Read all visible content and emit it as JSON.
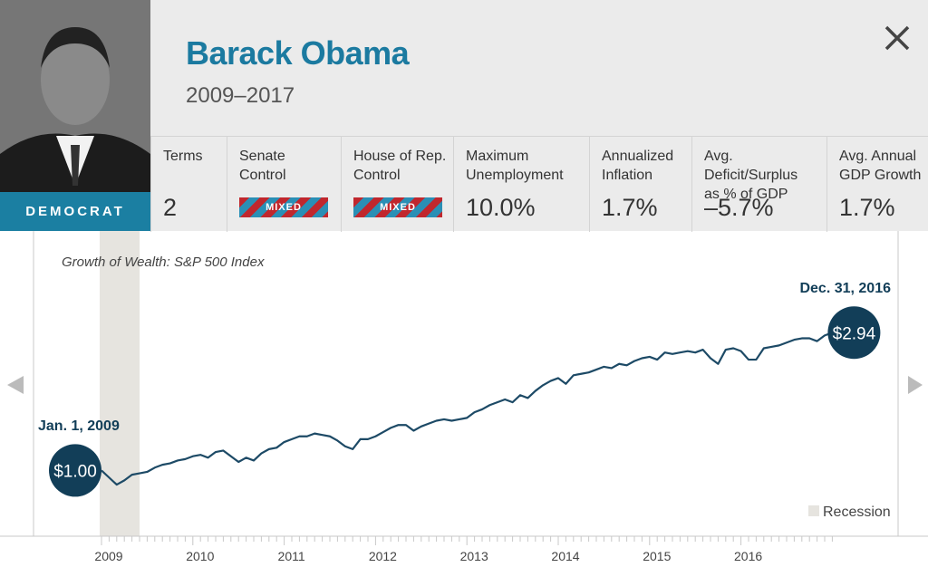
{
  "profile": {
    "name": "Barack Obama",
    "term": "2009–2017",
    "party": "DEMOCRAT"
  },
  "stats": [
    {
      "label": "Terms",
      "value": "2"
    },
    {
      "label": "Senate\nControl",
      "badge": "MIXED"
    },
    {
      "label": "House of Rep.\nControl",
      "badge": "MIXED"
    },
    {
      "label": "Maximum\nUnemployment",
      "value": "10.0%"
    },
    {
      "label": "Annualized\nInflation",
      "value": "1.7%"
    },
    {
      "label": "Avg. Deficit/Surplus\nas % of GDP",
      "value": "–5.7%"
    },
    {
      "label": "Avg. Annual\nGDP Growth",
      "value": "1.7%"
    }
  ],
  "chart_data": {
    "type": "line",
    "title": "Growth of Wealth: S&P 500 Index",
    "categories": [
      "2009",
      null,
      null,
      null,
      null,
      null,
      null,
      null,
      null,
      null,
      null,
      null,
      "2010",
      null,
      null,
      null,
      null,
      null,
      null,
      null,
      null,
      null,
      null,
      null,
      "2011",
      null,
      null,
      null,
      null,
      null,
      null,
      null,
      null,
      null,
      null,
      null,
      "2012",
      null,
      null,
      null,
      null,
      null,
      null,
      null,
      null,
      null,
      null,
      null,
      "2013",
      null,
      null,
      null,
      null,
      null,
      null,
      null,
      null,
      null,
      null,
      null,
      "2014",
      null,
      null,
      null,
      null,
      null,
      null,
      null,
      null,
      null,
      null,
      null,
      "2015",
      null,
      null,
      null,
      null,
      null,
      null,
      null,
      null,
      null,
      null,
      null,
      "2016",
      null,
      null,
      null,
      null,
      null,
      null,
      null,
      null,
      null,
      null,
      null,
      null
    ],
    "series": [
      {
        "name": "S&P 500 Index",
        "color": "#1d4a66",
        "values": [
          1.0,
          0.9,
          0.8,
          0.86,
          0.94,
          0.96,
          0.98,
          1.04,
          1.08,
          1.1,
          1.14,
          1.16,
          1.2,
          1.22,
          1.18,
          1.26,
          1.28,
          1.2,
          1.12,
          1.18,
          1.14,
          1.24,
          1.3,
          1.32,
          1.4,
          1.44,
          1.48,
          1.48,
          1.52,
          1.5,
          1.48,
          1.42,
          1.34,
          1.3,
          1.44,
          1.44,
          1.48,
          1.54,
          1.6,
          1.64,
          1.64,
          1.56,
          1.62,
          1.66,
          1.7,
          1.72,
          1.7,
          1.72,
          1.74,
          1.82,
          1.86,
          1.92,
          1.96,
          2.0,
          1.96,
          2.06,
          2.02,
          2.12,
          2.2,
          2.26,
          2.3,
          2.22,
          2.34,
          2.36,
          2.38,
          2.42,
          2.46,
          2.44,
          2.5,
          2.48,
          2.54,
          2.58,
          2.6,
          2.56,
          2.66,
          2.64,
          2.66,
          2.68,
          2.66,
          2.7,
          2.58,
          2.5,
          2.7,
          2.72,
          2.68,
          2.56,
          2.56,
          2.72,
          2.74,
          2.76,
          2.8,
          2.84,
          2.86,
          2.86,
          2.82,
          2.9,
          2.94
        ],
        "value_labels": [
          "$1.00",
          null,
          null,
          null,
          null,
          null,
          null,
          null,
          null,
          null,
          null,
          null,
          null,
          null,
          null,
          null,
          null,
          null,
          null,
          null,
          null,
          null,
          null,
          null,
          null,
          null,
          null,
          null,
          null,
          null,
          null,
          null,
          null,
          null,
          null,
          null,
          null,
          null,
          null,
          null,
          null,
          null,
          null,
          null,
          null,
          null,
          null,
          null,
          null,
          null,
          null,
          null,
          null,
          null,
          null,
          null,
          null,
          null,
          null,
          null,
          null,
          null,
          null,
          null,
          null,
          null,
          null,
          null,
          null,
          null,
          null,
          null,
          null,
          null,
          null,
          null,
          null,
          null,
          null,
          null,
          null,
          null,
          null,
          null,
          null,
          null,
          null,
          null,
          null,
          null,
          null,
          null,
          null,
          null,
          null,
          null,
          "$2.94"
        ]
      }
    ],
    "annotations": [
      "Jan. 1, 2009",
      "Dec. 31, 2016"
    ],
    "legend": "Recession",
    "ylim": [
      0.1,
      4.18
    ]
  }
}
